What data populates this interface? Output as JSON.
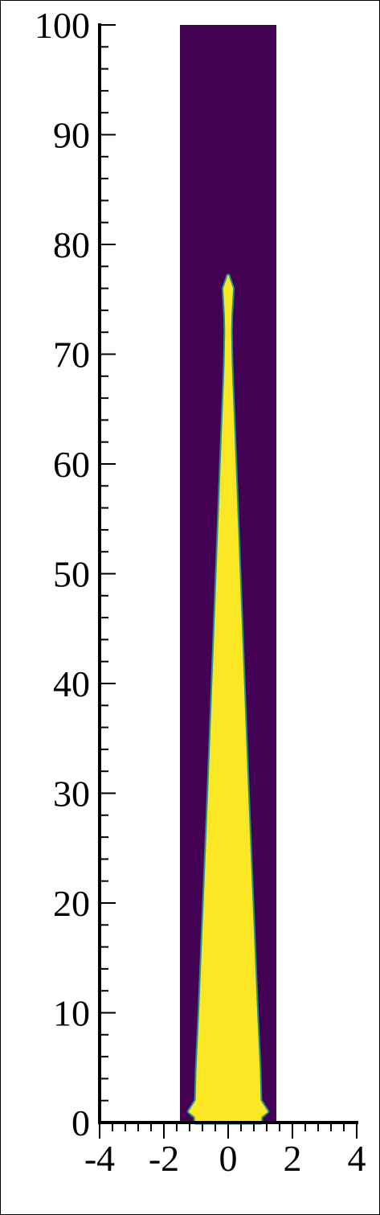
{
  "chart_data": {
    "type": "heatmap",
    "title": "",
    "xlabel": "",
    "ylabel": "",
    "xlim": [
      -4,
      4
    ],
    "ylim": [
      0,
      100
    ],
    "domain_x": [
      -1.5,
      1.5
    ],
    "x_ticks": [
      -4,
      -2,
      0,
      2,
      4
    ],
    "x_tick_labels": [
      "-4",
      "-2",
      "0",
      "2",
      "4"
    ],
    "y_ticks": [
      0,
      10,
      20,
      30,
      40,
      50,
      60,
      70,
      80,
      90,
      100
    ],
    "y_tick_labels": [
      "0",
      "10",
      "20",
      "30",
      "40",
      "50",
      "60",
      "70",
      "80",
      "90",
      "100"
    ],
    "x_minor_step": 0.4,
    "y_minor_step": 2,
    "grid": false,
    "colors": {
      "background_phase": "#440154",
      "jet_phase": "#fde725",
      "interface": "#21918c"
    },
    "jet_profile": {
      "y": [
        0.5,
        1,
        2,
        5,
        10,
        20,
        30,
        40,
        50,
        60,
        66,
        69,
        70.5,
        72,
        73.5,
        74.5,
        76,
        76.9
      ],
      "half_width": [
        1.02,
        1.22,
        1.0,
        0.97,
        0.89,
        0.75,
        0.61,
        0.48,
        0.35,
        0.22,
        0.14,
        0.1,
        0.09,
        0.08,
        0.09,
        0.11,
        0.14,
        0.03
      ]
    }
  }
}
